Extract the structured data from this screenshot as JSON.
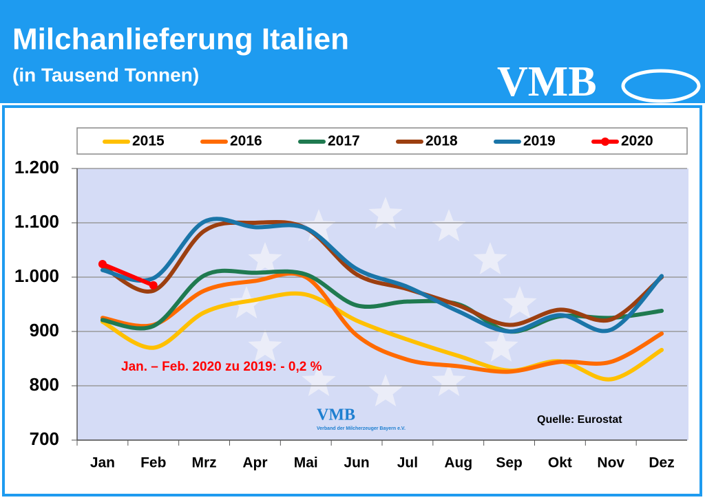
{
  "chart_data": {
    "type": "line",
    "title": "Milchanlieferung Italien",
    "subtitle": "(in Tausend Tonnen)",
    "logo_text": "VMB",
    "watermark_subtext": "Verband der Milcherzeuger Bayern e.V.",
    "annotation": "Jan. – Feb. 2020 zu 2019: - 0,2 %",
    "source": "Quelle: Eurostat",
    "categories": [
      "Jan",
      "Feb",
      "Mrz",
      "Apr",
      "Mai",
      "Jun",
      "Jul",
      "Aug",
      "Sep",
      "Okt",
      "Nov",
      "Dez"
    ],
    "series": [
      {
        "name": "2015",
        "color": "#ffc000",
        "values": [
          918,
          870,
          935,
          958,
          968,
          920,
          885,
          855,
          828,
          845,
          812,
          866
        ]
      },
      {
        "name": "2016",
        "color": "#ff6a00",
        "values": [
          925,
          912,
          975,
          993,
          1000,
          893,
          848,
          836,
          826,
          844,
          844,
          896
        ]
      },
      {
        "name": "2017",
        "color": "#1f7a50",
        "values": [
          921,
          910,
          1003,
          1008,
          1005,
          948,
          955,
          950,
          900,
          928,
          925,
          938
        ]
      },
      {
        "name": "2018",
        "color": "#9c3f10",
        "values": [
          1020,
          975,
          1085,
          1100,
          1090,
          1005,
          978,
          948,
          912,
          940,
          922,
          1000
        ]
      },
      {
        "name": "2019",
        "color": "#1a75a8",
        "values": [
          1013,
          998,
          1102,
          1092,
          1090,
          1015,
          982,
          937,
          900,
          930,
          903,
          1002
        ]
      },
      {
        "name": "2020",
        "color": "#ff0000",
        "markers": true,
        "values": [
          1024,
          985,
          null,
          null,
          null,
          null,
          null,
          null,
          null,
          null,
          null,
          null
        ]
      }
    ],
    "ylim": [
      700,
      1200
    ],
    "yticks": [
      700,
      800,
      900,
      {
        "value": 1000,
        "label": "1.000"
      },
      {
        "value": 1100,
        "label": "1.100"
      },
      {
        "value": 1200,
        "label": "1.200"
      }
    ],
    "grid": true
  }
}
